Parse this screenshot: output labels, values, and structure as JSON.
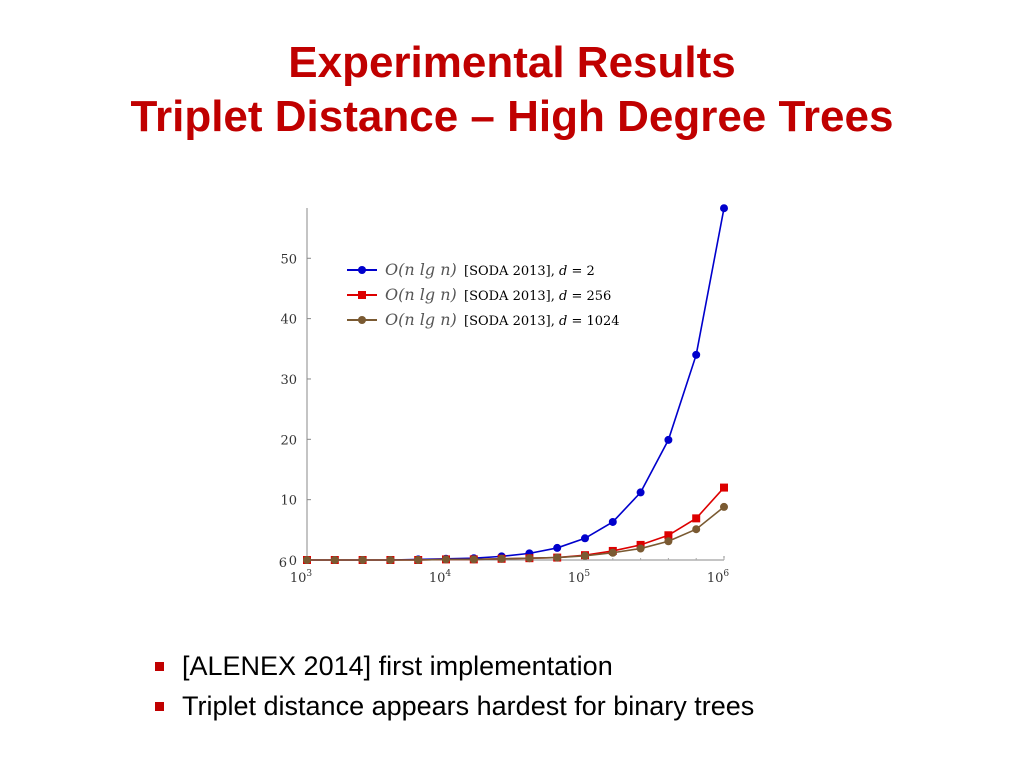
{
  "title": {
    "line1": "Experimental Results",
    "line2": "Triplet Distance – High Degree Trees"
  },
  "bullets": [
    "[ALENEX 2014] first implementation",
    "Triplet distance appears hardest for binary trees"
  ],
  "colors": {
    "title": "#c00000",
    "bullet": "#c00000",
    "series_d2": "#0000cc",
    "series_d256": "#dd0000",
    "series_d1024": "#7a5a32"
  },
  "chart_data": {
    "type": "line",
    "xscale": "log",
    "xlim": [
      1000,
      1000000
    ],
    "ylim": [
      0,
      58
    ],
    "yticks": [
      0,
      10,
      20,
      30,
      40,
      50
    ],
    "ytick_labels": [
      "0",
      "10",
      "20",
      "30",
      "40",
      "50"
    ],
    "xticks": [
      1000,
      10000,
      100000,
      1000000
    ],
    "xtick_labels": [
      {
        "base": "10",
        "exp": "3"
      },
      {
        "base": "10",
        "exp": "4"
      },
      {
        "base": "10",
        "exp": "5"
      },
      {
        "base": "10",
        "exp": "6"
      }
    ],
    "stray_label": "6",
    "legend_position": "top-left",
    "x": [
      1000,
      1585,
      2512,
      3981,
      6310,
      10000,
      15849,
      25119,
      39811,
      63096,
      100000,
      158489,
      251189,
      398107,
      630957,
      1000000
    ],
    "series": [
      {
        "legend_math": "O(n lg n)",
        "legend_text": "[SODA 2013], d = 2",
        "legend_prefix": "[SODA 2013], ",
        "legend_var": "d",
        "legend_val": " = 2",
        "marker": "circle",
        "color": "#0000cc",
        "values": [
          0.0,
          0.0,
          0.0,
          0.0,
          0.1,
          0.2,
          0.3,
          0.6,
          1.1,
          2.0,
          3.6,
          6.3,
          11.2,
          19.9,
          34.0,
          58.3
        ]
      },
      {
        "legend_math": "O(n lg n)",
        "legend_text": "[SODA 2013], d = 256",
        "legend_prefix": "[SODA 2013], ",
        "legend_var": "d",
        "legend_val": " = 256",
        "marker": "square",
        "color": "#dd0000",
        "values": [
          0.0,
          0.0,
          0.0,
          0.0,
          0.0,
          0.1,
          0.1,
          0.2,
          0.3,
          0.4,
          0.8,
          1.5,
          2.5,
          4.1,
          6.9,
          12.0
        ]
      },
      {
        "legend_math": "O(n lg n)",
        "legend_text": "[SODA 2013], d = 1024",
        "legend_prefix": "[SODA 2013], ",
        "legend_var": "d",
        "legend_val": " = 1024",
        "marker": "circle",
        "color": "#7a5a32",
        "values": [
          0.0,
          0.0,
          0.0,
          0.0,
          0.0,
          0.1,
          0.1,
          0.2,
          0.3,
          0.4,
          0.7,
          1.2,
          1.9,
          3.1,
          5.1,
          8.8
        ]
      }
    ]
  }
}
